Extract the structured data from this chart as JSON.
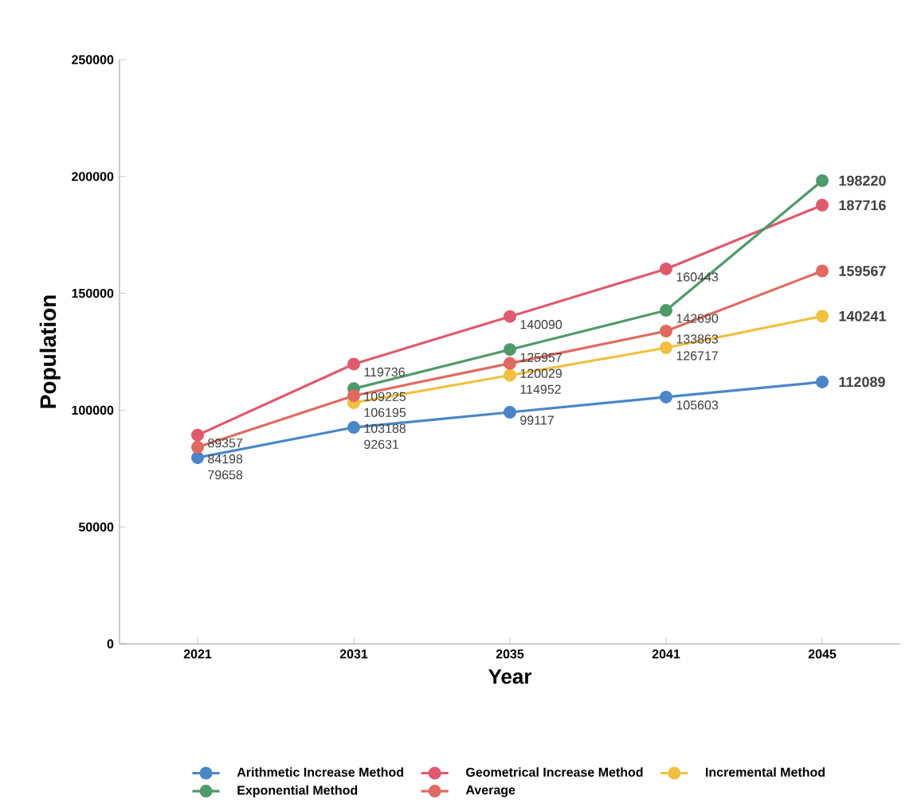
{
  "chart_data": {
    "type": "line",
    "xlabel": "Year",
    "ylabel": "Population",
    "categories": [
      "2021",
      "2031",
      "2035",
      "2041",
      "2045"
    ],
    "ylim": [
      0,
      250000
    ],
    "yticks": [
      0,
      50000,
      100000,
      150000,
      200000,
      250000
    ],
    "series": [
      {
        "name": "Arithmetic Increase Method",
        "color": "#4a86c8",
        "values": [
          79658,
          92631,
          99117,
          105603,
          112089
        ],
        "value_labels": [
          "79658",
          "92631",
          "99117",
          "105603",
          "112089"
        ]
      },
      {
        "name": "Geometrical Increase Method",
        "color": "#e05a6e",
        "values": [
          89357,
          119736,
          140090,
          160443,
          187716
        ],
        "value_labels": [
          "89357",
          "119736",
          "140090",
          "160443",
          "187716"
        ]
      },
      {
        "name": "Incremental Method",
        "color": "#f0c040",
        "values": [
          null,
          103188,
          114952,
          126717,
          140241
        ],
        "value_labels": [
          null,
          "103188",
          "114952",
          "126717",
          "140241"
        ]
      },
      {
        "name": "Exponential  Method",
        "color": "#4e9a6a",
        "values": [
          null,
          109225,
          125957,
          142690,
          198220
        ],
        "value_labels": [
          null,
          "109225",
          "125957",
          "142690",
          "198220"
        ]
      },
      {
        "name": "Average",
        "color": "#e06a60",
        "values": [
          84198,
          106195,
          120029,
          133863,
          159567
        ],
        "value_labels": [
          "84198",
          "106195",
          "120029",
          "133863",
          "159567"
        ]
      }
    ],
    "legend": "bottom",
    "marker": "circle",
    "line_style": "solid",
    "grid": false
  }
}
